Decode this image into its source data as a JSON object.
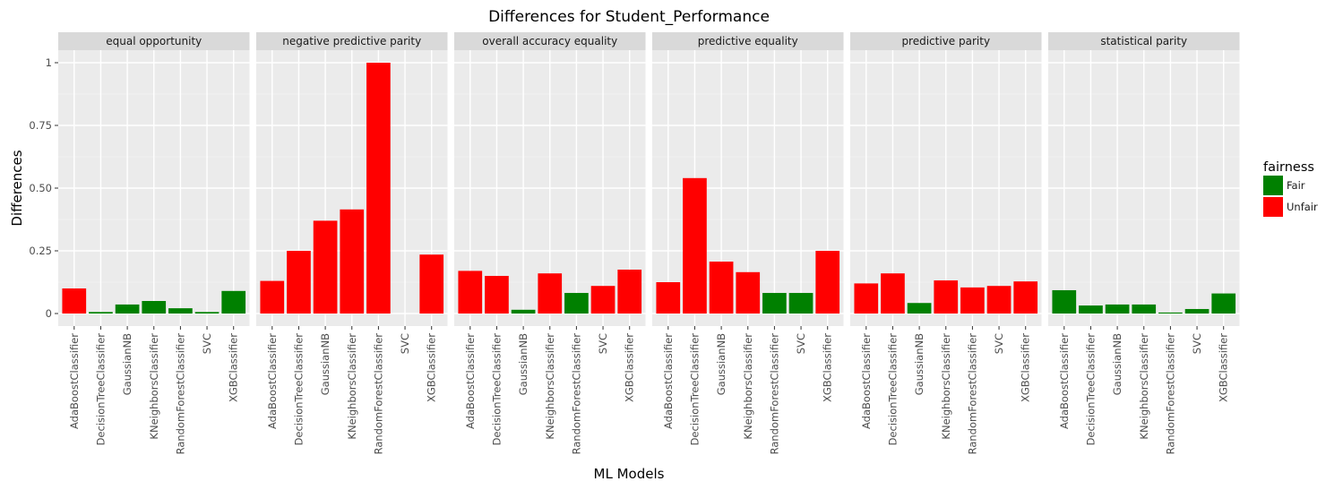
{
  "chart_data": {
    "type": "bar",
    "title": "Differences for Student_Performance",
    "xlabel": "ML Models",
    "ylabel": "Differences",
    "ylim": [
      -0.05,
      1.05
    ],
    "y_ticks": [
      0,
      0.25,
      0.5,
      0.75,
      1
    ],
    "y_tick_labels": [
      "0",
      "0.25",
      "0.50",
      "0.75",
      "1"
    ],
    "grid": true,
    "categories": [
      "AdaBoostClassifier",
      "DecisionTreeClassifier",
      "GaussianNB",
      "KNeighborsClassifier",
      "RandomForestClassifier",
      "SVC",
      "XGBClassifier"
    ],
    "colors": {
      "Fair": "#008000",
      "Unfair": "#ff0000"
    },
    "legend": {
      "title": "fairness",
      "entries": [
        "Fair",
        "Unfair"
      ],
      "placement": "right"
    },
    "facets": [
      {
        "name": "equal opportunity",
        "values": [
          0.1,
          0.006,
          0.036,
          0.05,
          0.021,
          0.006,
          0.09
        ],
        "fairness": [
          "Unfair",
          "Fair",
          "Fair",
          "Fair",
          "Fair",
          "Fair",
          "Fair"
        ]
      },
      {
        "name": "negative predictive parity",
        "values": [
          0.13,
          0.25,
          0.37,
          0.415,
          1.0,
          0.0,
          0.235
        ],
        "fairness": [
          "Unfair",
          "Unfair",
          "Unfair",
          "Unfair",
          "Unfair",
          "Unfair",
          "Unfair"
        ]
      },
      {
        "name": "overall accuracy equality",
        "values": [
          0.17,
          0.15,
          0.015,
          0.16,
          0.082,
          0.11,
          0.175
        ],
        "fairness": [
          "Unfair",
          "Unfair",
          "Fair",
          "Unfair",
          "Fair",
          "Unfair",
          "Unfair"
        ]
      },
      {
        "name": "predictive equality",
        "values": [
          0.125,
          0.54,
          0.207,
          0.165,
          0.082,
          0.082,
          0.25
        ],
        "fairness": [
          "Unfair",
          "Unfair",
          "Unfair",
          "Unfair",
          "Fair",
          "Fair",
          "Unfair"
        ]
      },
      {
        "name": "predictive parity",
        "values": [
          0.12,
          0.16,
          0.042,
          0.132,
          0.104,
          0.11,
          0.128
        ],
        "fairness": [
          "Unfair",
          "Unfair",
          "Fair",
          "Unfair",
          "Unfair",
          "Unfair",
          "Unfair"
        ]
      },
      {
        "name": "statistical parity",
        "values": [
          0.093,
          0.032,
          0.036,
          0.036,
          0.004,
          0.018,
          0.08
        ],
        "fairness": [
          "Fair",
          "Fair",
          "Fair",
          "Fair",
          "Fair",
          "Fair",
          "Fair"
        ]
      }
    ]
  }
}
